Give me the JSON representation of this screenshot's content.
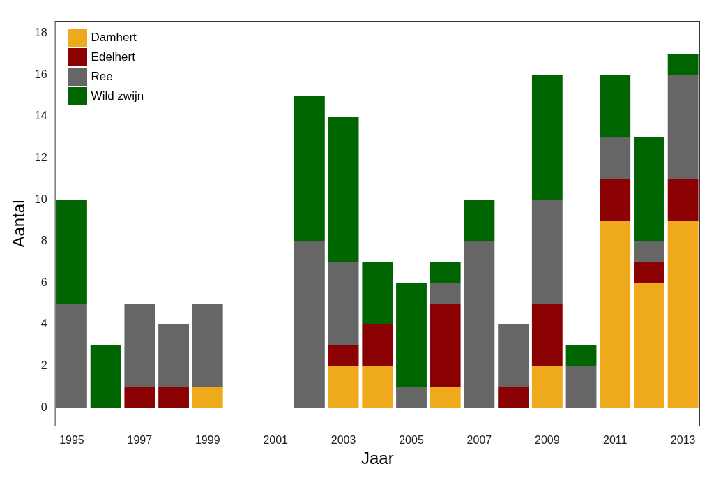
{
  "chart_data": {
    "type": "bar",
    "x_label": "Jaar",
    "y_label": "Aantal",
    "categories": [
      "1995",
      null,
      "1997",
      null,
      "1999",
      null,
      "2001",
      null,
      "2003",
      null,
      "2005",
      null,
      "2007",
      null,
      "2009",
      null,
      "2011",
      null,
      "2013"
    ],
    "series": [
      {
        "name": "Damhert",
        "color": "#eeaa1a",
        "values": [
          0,
          0,
          0,
          0,
          1,
          0,
          0,
          0,
          2,
          2,
          0,
          1,
          0,
          0,
          2,
          0,
          9,
          6,
          9
        ]
      },
      {
        "name": "Edelhert",
        "color": "#8b0000",
        "values": [
          0,
          0,
          1,
          1,
          0,
          0,
          0,
          0,
          1,
          2,
          0,
          4,
          0,
          1,
          3,
          0,
          2,
          1,
          2
        ]
      },
      {
        "name": "Ree",
        "color": "#666666",
        "values": [
          5,
          0,
          4,
          3,
          4,
          0,
          0,
          8,
          4,
          0,
          1,
          1,
          8,
          3,
          5,
          2,
          2,
          1,
          5
        ]
      },
      {
        "name": "Wild zwijn",
        "color": "#006400",
        "values": [
          5,
          3,
          0,
          0,
          0,
          0,
          0,
          7,
          7,
          3,
          5,
          1,
          2,
          0,
          6,
          1,
          3,
          5,
          1
        ]
      }
    ],
    "stacked": true,
    "ylim": [
      -0.9,
      18.6
    ],
    "yticks": [
      0,
      2,
      4,
      6,
      8,
      10,
      12,
      14,
      16,
      18
    ],
    "grid": false,
    "legend": "top-left"
  }
}
